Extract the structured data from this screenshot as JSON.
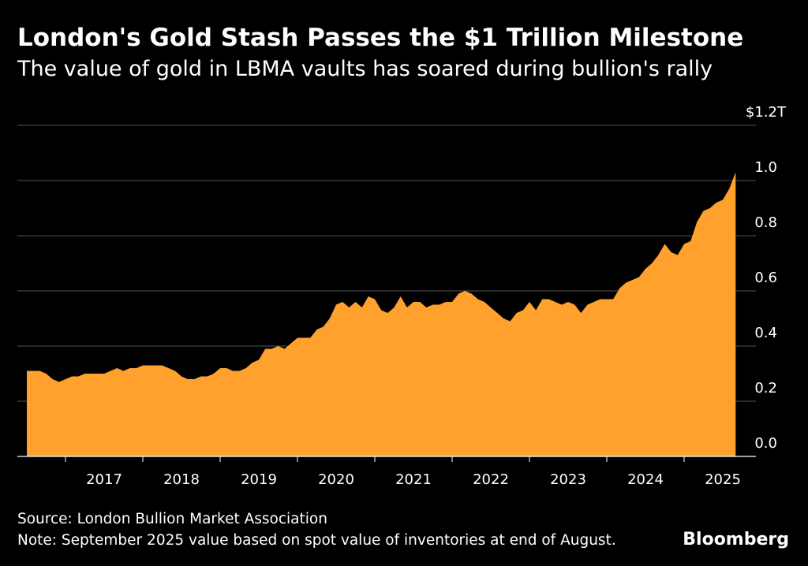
{
  "title": "London's Gold Stash Passes the $1 Trillion Milestone",
  "subtitle": "The value of gold in LBMA vaults has soared during bullion's rally",
  "source": "Source: London Bullion Market Association",
  "note": "Note: September 2025 value based on spot value of inventories at end of August.",
  "brand": "Bloomberg",
  "colors": {
    "background": "#000000",
    "area": "#FFA12C",
    "grid": "#555555",
    "axis": "#ffffff"
  },
  "chart_data": {
    "type": "area",
    "y_unit": "trillion USD",
    "ylim": [
      0,
      1.2
    ],
    "y_ticks": [
      {
        "value": 1.2,
        "label": "$1.2T"
      },
      {
        "value": 1.0,
        "label": "1.0"
      },
      {
        "value": 0.8,
        "label": "0.8"
      },
      {
        "value": 0.6,
        "label": "0.6"
      },
      {
        "value": 0.4,
        "label": "0.4"
      },
      {
        "value": 0.2,
        "label": "0.2"
      },
      {
        "value": 0.0,
        "label": "0.0"
      }
    ],
    "x_ticks": [
      "2017",
      "2018",
      "2019",
      "2020",
      "2021",
      "2022",
      "2023",
      "2024",
      "2025"
    ],
    "grid": "horizontal",
    "series": [
      {
        "values": [
          {
            "x": "2016-07",
            "y": 0.31
          },
          {
            "x": "2016-08",
            "y": 0.31
          },
          {
            "x": "2016-09",
            "y": 0.31
          },
          {
            "x": "2016-10",
            "y": 0.3
          },
          {
            "x": "2016-11",
            "y": 0.28
          },
          {
            "x": "2016-12",
            "y": 0.27
          },
          {
            "x": "2017-01",
            "y": 0.28
          },
          {
            "x": "2017-02",
            "y": 0.29
          },
          {
            "x": "2017-03",
            "y": 0.29
          },
          {
            "x": "2017-04",
            "y": 0.3
          },
          {
            "x": "2017-05",
            "y": 0.3
          },
          {
            "x": "2017-06",
            "y": 0.3
          },
          {
            "x": "2017-07",
            "y": 0.3
          },
          {
            "x": "2017-08",
            "y": 0.31
          },
          {
            "x": "2017-09",
            "y": 0.32
          },
          {
            "x": "2017-10",
            "y": 0.31
          },
          {
            "x": "2017-11",
            "y": 0.32
          },
          {
            "x": "2017-12",
            "y": 0.32
          },
          {
            "x": "2018-01",
            "y": 0.33
          },
          {
            "x": "2018-02",
            "y": 0.33
          },
          {
            "x": "2018-03",
            "y": 0.33
          },
          {
            "x": "2018-04",
            "y": 0.33
          },
          {
            "x": "2018-05",
            "y": 0.32
          },
          {
            "x": "2018-06",
            "y": 0.31
          },
          {
            "x": "2018-07",
            "y": 0.29
          },
          {
            "x": "2018-08",
            "y": 0.28
          },
          {
            "x": "2018-09",
            "y": 0.28
          },
          {
            "x": "2018-10",
            "y": 0.29
          },
          {
            "x": "2018-11",
            "y": 0.29
          },
          {
            "x": "2018-12",
            "y": 0.3
          },
          {
            "x": "2019-01",
            "y": 0.32
          },
          {
            "x": "2019-02",
            "y": 0.32
          },
          {
            "x": "2019-03",
            "y": 0.31
          },
          {
            "x": "2019-04",
            "y": 0.31
          },
          {
            "x": "2019-05",
            "y": 0.32
          },
          {
            "x": "2019-06",
            "y": 0.34
          },
          {
            "x": "2019-07",
            "y": 0.35
          },
          {
            "x": "2019-08",
            "y": 0.39
          },
          {
            "x": "2019-09",
            "y": 0.39
          },
          {
            "x": "2019-10",
            "y": 0.4
          },
          {
            "x": "2019-11",
            "y": 0.39
          },
          {
            "x": "2019-12",
            "y": 0.41
          },
          {
            "x": "2020-01",
            "y": 0.43
          },
          {
            "x": "2020-02",
            "y": 0.43
          },
          {
            "x": "2020-03",
            "y": 0.43
          },
          {
            "x": "2020-04",
            "y": 0.46
          },
          {
            "x": "2020-05",
            "y": 0.47
          },
          {
            "x": "2020-06",
            "y": 0.5
          },
          {
            "x": "2020-07",
            "y": 0.55
          },
          {
            "x": "2020-08",
            "y": 0.56
          },
          {
            "x": "2020-09",
            "y": 0.54
          },
          {
            "x": "2020-10",
            "y": 0.56
          },
          {
            "x": "2020-11",
            "y": 0.54
          },
          {
            "x": "2020-12",
            "y": 0.58
          },
          {
            "x": "2021-01",
            "y": 0.57
          },
          {
            "x": "2021-02",
            "y": 0.53
          },
          {
            "x": "2021-03",
            "y": 0.52
          },
          {
            "x": "2021-04",
            "y": 0.54
          },
          {
            "x": "2021-05",
            "y": 0.58
          },
          {
            "x": "2021-06",
            "y": 0.54
          },
          {
            "x": "2021-07",
            "y": 0.56
          },
          {
            "x": "2021-08",
            "y": 0.56
          },
          {
            "x": "2021-09",
            "y": 0.54
          },
          {
            "x": "2021-10",
            "y": 0.55
          },
          {
            "x": "2021-11",
            "y": 0.55
          },
          {
            "x": "2021-12",
            "y": 0.56
          },
          {
            "x": "2022-01",
            "y": 0.56
          },
          {
            "x": "2022-02",
            "y": 0.59
          },
          {
            "x": "2022-03",
            "y": 0.6
          },
          {
            "x": "2022-04",
            "y": 0.59
          },
          {
            "x": "2022-05",
            "y": 0.57
          },
          {
            "x": "2022-06",
            "y": 0.56
          },
          {
            "x": "2022-07",
            "y": 0.54
          },
          {
            "x": "2022-08",
            "y": 0.52
          },
          {
            "x": "2022-09",
            "y": 0.5
          },
          {
            "x": "2022-10",
            "y": 0.49
          },
          {
            "x": "2022-11",
            "y": 0.52
          },
          {
            "x": "2022-12",
            "y": 0.53
          },
          {
            "x": "2023-01",
            "y": 0.56
          },
          {
            "x": "2023-02",
            "y": 0.53
          },
          {
            "x": "2023-03",
            "y": 0.57
          },
          {
            "x": "2023-04",
            "y": 0.57
          },
          {
            "x": "2023-05",
            "y": 0.56
          },
          {
            "x": "2023-06",
            "y": 0.55
          },
          {
            "x": "2023-07",
            "y": 0.56
          },
          {
            "x": "2023-08",
            "y": 0.55
          },
          {
            "x": "2023-09",
            "y": 0.52
          },
          {
            "x": "2023-10",
            "y": 0.55
          },
          {
            "x": "2023-11",
            "y": 0.56
          },
          {
            "x": "2023-12",
            "y": 0.57
          },
          {
            "x": "2024-01",
            "y": 0.57
          },
          {
            "x": "2024-02",
            "y": 0.57
          },
          {
            "x": "2024-03",
            "y": 0.61
          },
          {
            "x": "2024-04",
            "y": 0.63
          },
          {
            "x": "2024-05",
            "y": 0.64
          },
          {
            "x": "2024-06",
            "y": 0.65
          },
          {
            "x": "2024-07",
            "y": 0.68
          },
          {
            "x": "2024-08",
            "y": 0.7
          },
          {
            "x": "2024-09",
            "y": 0.73
          },
          {
            "x": "2024-10",
            "y": 0.77
          },
          {
            "x": "2024-11",
            "y": 0.74
          },
          {
            "x": "2024-12",
            "y": 0.73
          },
          {
            "x": "2025-01",
            "y": 0.77
          },
          {
            "x": "2025-02",
            "y": 0.78
          },
          {
            "x": "2025-03",
            "y": 0.85
          },
          {
            "x": "2025-04",
            "y": 0.89
          },
          {
            "x": "2025-05",
            "y": 0.9
          },
          {
            "x": "2025-06",
            "y": 0.92
          },
          {
            "x": "2025-07",
            "y": 0.93
          },
          {
            "x": "2025-08",
            "y": 0.97
          },
          {
            "x": "2025-09",
            "y": 1.03
          }
        ]
      }
    ]
  }
}
